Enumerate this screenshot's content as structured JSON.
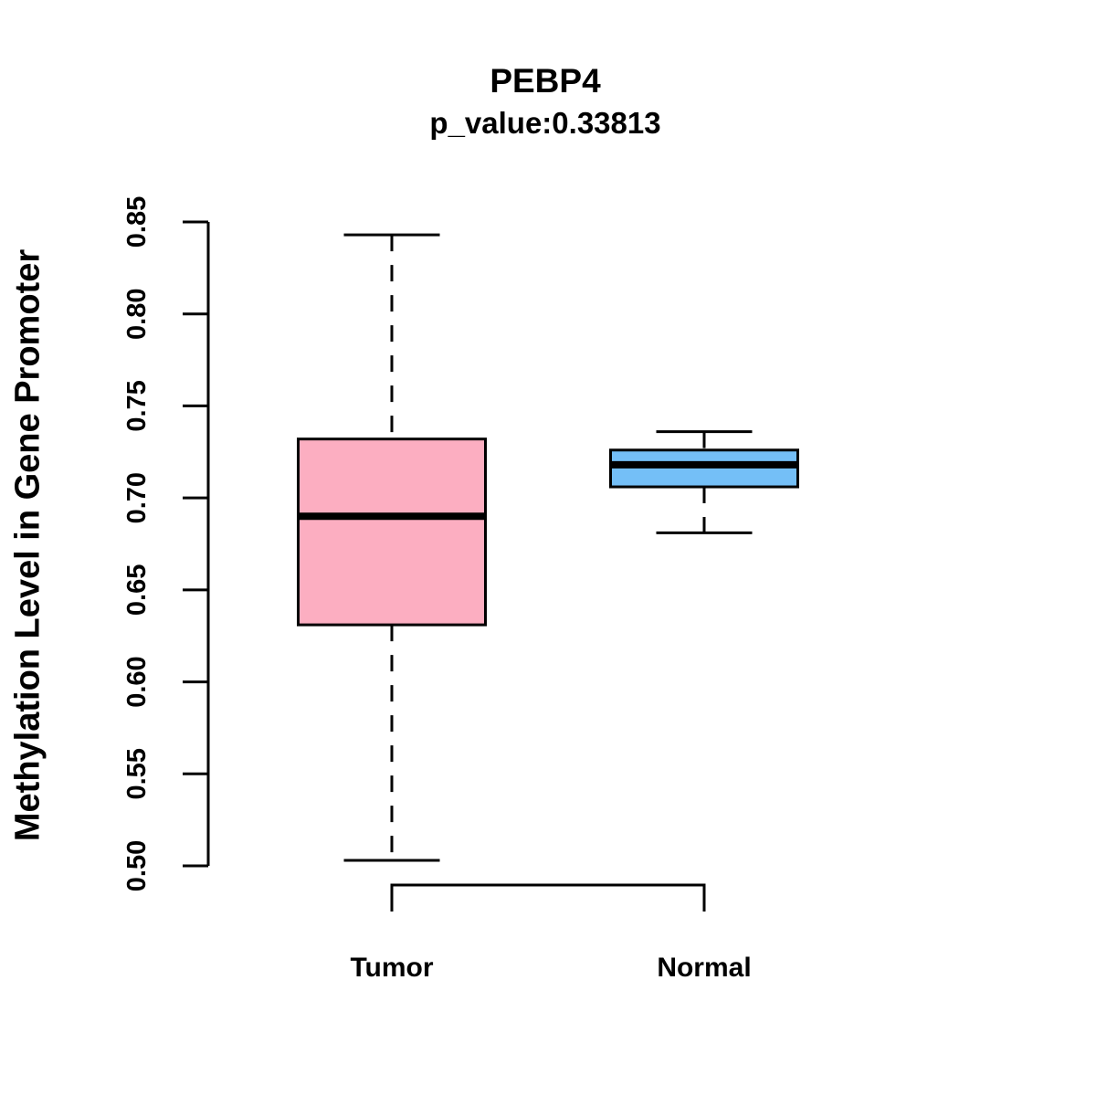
{
  "chart_data": {
    "type": "boxplot",
    "title": "PEBP4",
    "subtitle": "p_value:0.33813",
    "ylabel": "Methylation Level in Gene Promoter",
    "xlabel": "",
    "ylim": [
      0.5,
      0.85
    ],
    "yticks": [
      0.5,
      0.55,
      0.6,
      0.65,
      0.7,
      0.75,
      0.8,
      0.85
    ],
    "ytick_labels": [
      "0.50",
      "0.55",
      "0.60",
      "0.65",
      "0.70",
      "0.75",
      "0.80",
      "0.85"
    ],
    "categories": [
      "Tumor",
      "Normal"
    ],
    "grid": false,
    "legend_position": "none",
    "series": [
      {
        "name": "Tumor",
        "fill_color": "#FCAEC1",
        "whisker_low": 0.503,
        "q1": 0.631,
        "median": 0.69,
        "q3": 0.732,
        "whisker_high": 0.843
      },
      {
        "name": "Normal",
        "fill_color": "#74BFF7",
        "whisker_low": 0.681,
        "q1": 0.706,
        "median": 0.718,
        "q3": 0.726,
        "whisker_high": 0.736
      }
    ],
    "colors": {
      "box_border": "#000000",
      "median_line": "#000000",
      "axis": "#000000",
      "text": "#000000",
      "background": "#FFFFFF"
    }
  }
}
